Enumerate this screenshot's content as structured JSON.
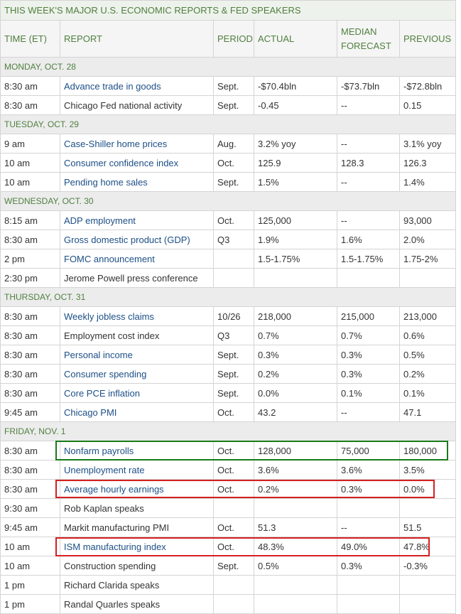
{
  "title": "THIS WEEK'S MAJOR U.S. ECONOMIC REPORTS & FED SPEAKERS",
  "header": [
    "TIME (ET)",
    "REPORT",
    "PERIOD",
    "ACTUAL",
    "MEDIAN FORECAST",
    "PREVIOUS"
  ],
  "sections": [
    {
      "day": "MONDAY, OCT. 28",
      "rows": [
        {
          "cells": [
            "8:30 am",
            "Advance trade in goods",
            "Sept.",
            "-$70.4bln",
            "-$73.7bln",
            "-$72.8bln"
          ],
          "link": true
        },
        {
          "cells": [
            "8:30 am",
            "Chicago Fed national activity",
            "Sept.",
            "-0.45",
            "--",
            "0.15"
          ],
          "link": false
        }
      ]
    },
    {
      "day": "TUESDAY, OCT. 29",
      "rows": [
        {
          "cells": [
            "9 am",
            "Case-Shiller home prices",
            "Aug.",
            "3.2% yoy",
            "--",
            "3.1% yoy"
          ],
          "link": true
        },
        {
          "cells": [
            "10 am",
            "Consumer confidence index",
            "Oct.",
            "125.9",
            "128.3",
            "126.3"
          ],
          "link": true
        },
        {
          "cells": [
            "10 am",
            "Pending home sales",
            "Sept.",
            "1.5%",
            "--",
            "1.4%"
          ],
          "link": true
        }
      ]
    },
    {
      "day": "WEDNESDAY, OCT. 30",
      "rows": [
        {
          "cells": [
            "8:15 am",
            "ADP employment",
            "Oct.",
            "125,000",
            "--",
            "93,000"
          ],
          "link": true
        },
        {
          "cells": [
            "8:30 am",
            "Gross domestic product (GDP)",
            "Q3",
            "1.9%",
            "1.6%",
            "2.0%"
          ],
          "link": true
        },
        {
          "cells": [
            "2 pm",
            "FOMC announcement",
            null,
            "1.5-1.75%",
            "1.5-1.75%",
            "1.75-2%"
          ],
          "link": true
        },
        {
          "cells": [
            "2:30 pm",
            "Jerome Powell press conference",
            null,
            null,
            null,
            null
          ],
          "link": false
        }
      ]
    },
    {
      "day": "THURSDAY, OCT. 31",
      "rows": [
        {
          "cells": [
            "8:30 am",
            "Weekly jobless claims",
            "10/26",
            "218,000",
            "215,000",
            "213,000"
          ],
          "link": true
        },
        {
          "cells": [
            "8:30 am",
            "Employment cost index",
            "Q3",
            "0.7%",
            "0.7%",
            "0.6%"
          ],
          "link": false
        },
        {
          "cells": [
            "8:30 am",
            "Personal income",
            "Sept.",
            "0.3%",
            "0.3%",
            "0.5%"
          ],
          "link": true
        },
        {
          "cells": [
            "8:30 am",
            "Consumer spending",
            "Sept.",
            "0.2%",
            "0.3%",
            "0.2%"
          ],
          "link": true
        },
        {
          "cells": [
            "8:30 am",
            "Core PCE inflation",
            "Sept.",
            "0.0%",
            "0.1%",
            "0.1%"
          ],
          "link": true
        },
        {
          "cells": [
            "9:45 am",
            "Chicago PMI",
            "Oct.",
            "43.2",
            "--",
            "47.1"
          ],
          "link": true
        }
      ]
    },
    {
      "day": "FRIDAY, NOV. 1",
      "rows": [
        {
          "cells": [
            "8:30 am",
            "Nonfarm payrolls",
            "Oct.",
            "128,000",
            "75,000",
            "180,000"
          ],
          "link": true
        },
        {
          "cells": [
            "8:30 am",
            "Unemployment rate",
            "Oct.",
            "3.6%",
            "3.6%",
            "3.5%"
          ],
          "link": true
        },
        {
          "cells": [
            "8:30 am",
            "Average hourly earnings",
            "Oct.",
            "0.2%",
            "0.3%",
            "0.0%"
          ],
          "link": true
        },
        {
          "cells": [
            "9:30 am",
            "Rob Kaplan speaks",
            null,
            null,
            null,
            null
          ],
          "link": false
        },
        {
          "cells": [
            "9:45 am",
            "Markit manufacturing PMI",
            "Oct.",
            "51.3",
            "--",
            "51.5"
          ],
          "link": false
        },
        {
          "cells": [
            "10 am",
            "ISM manufacturing index",
            "Oct.",
            "48.3%",
            "49.0%",
            "47.8%"
          ],
          "link": true
        },
        {
          "cells": [
            "10 am",
            "Construction spending",
            "Sept.",
            "0.5%",
            "0.3%",
            "-0.3%"
          ],
          "link": false
        },
        {
          "cells": [
            "1 pm",
            "Richard Clarida speaks",
            null,
            null,
            null,
            null
          ],
          "link": false
        },
        {
          "cells": [
            "1 pm",
            "Randal Quarles speaks",
            null,
            null,
            null,
            null
          ],
          "link": false
        }
      ]
    }
  ]
}
